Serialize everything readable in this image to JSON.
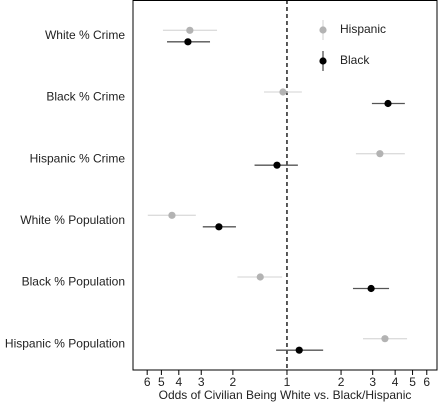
{
  "chart_data": {
    "type": "dot",
    "x_label": "Odds of Civilian Being White vs. Black/Hispanic",
    "categories": [
      "White % Crime",
      "Black % Crime",
      "Hispanic % Crime",
      "White % Population",
      "Black % Population",
      "Hispanic % Population"
    ],
    "series": [
      {
        "name": "Hispanic",
        "color": "#b3b3b3",
        "error_color": "#dcdcdc",
        "values": [
          0.288,
          0.95,
          3.29,
          0.229,
          0.71,
          3.51
        ],
        "lower": [
          0.204,
          0.745,
          2.42,
          0.168,
          0.53,
          2.65
        ],
        "upper": [
          0.408,
          1.21,
          4.53,
          0.311,
          0.94,
          4.66
        ]
      },
      {
        "name": "Black",
        "color": "#000000",
        "error_color": "#555555",
        "values": [
          0.281,
          3.65,
          0.88,
          0.418,
          2.94,
          1.17
        ],
        "lower": [
          0.215,
          2.97,
          0.66,
          0.34,
          2.33,
          0.87
        ],
        "upper": [
          0.373,
          4.53,
          1.15,
          0.52,
          3.7,
          1.59
        ]
      }
    ],
    "reference_line": 1,
    "xscale": "log",
    "xlim": [
      0.139,
      6.84
    ],
    "xticks": [
      {
        "value": 0.1667,
        "label": "6"
      },
      {
        "value": 0.2,
        "label": "5"
      },
      {
        "value": 0.25,
        "label": "4"
      },
      {
        "value": 0.3333,
        "label": "3"
      },
      {
        "value": 0.5,
        "label": "2"
      },
      1,
      2,
      3,
      4,
      5,
      6
    ],
    "legend_position": "upper right"
  }
}
